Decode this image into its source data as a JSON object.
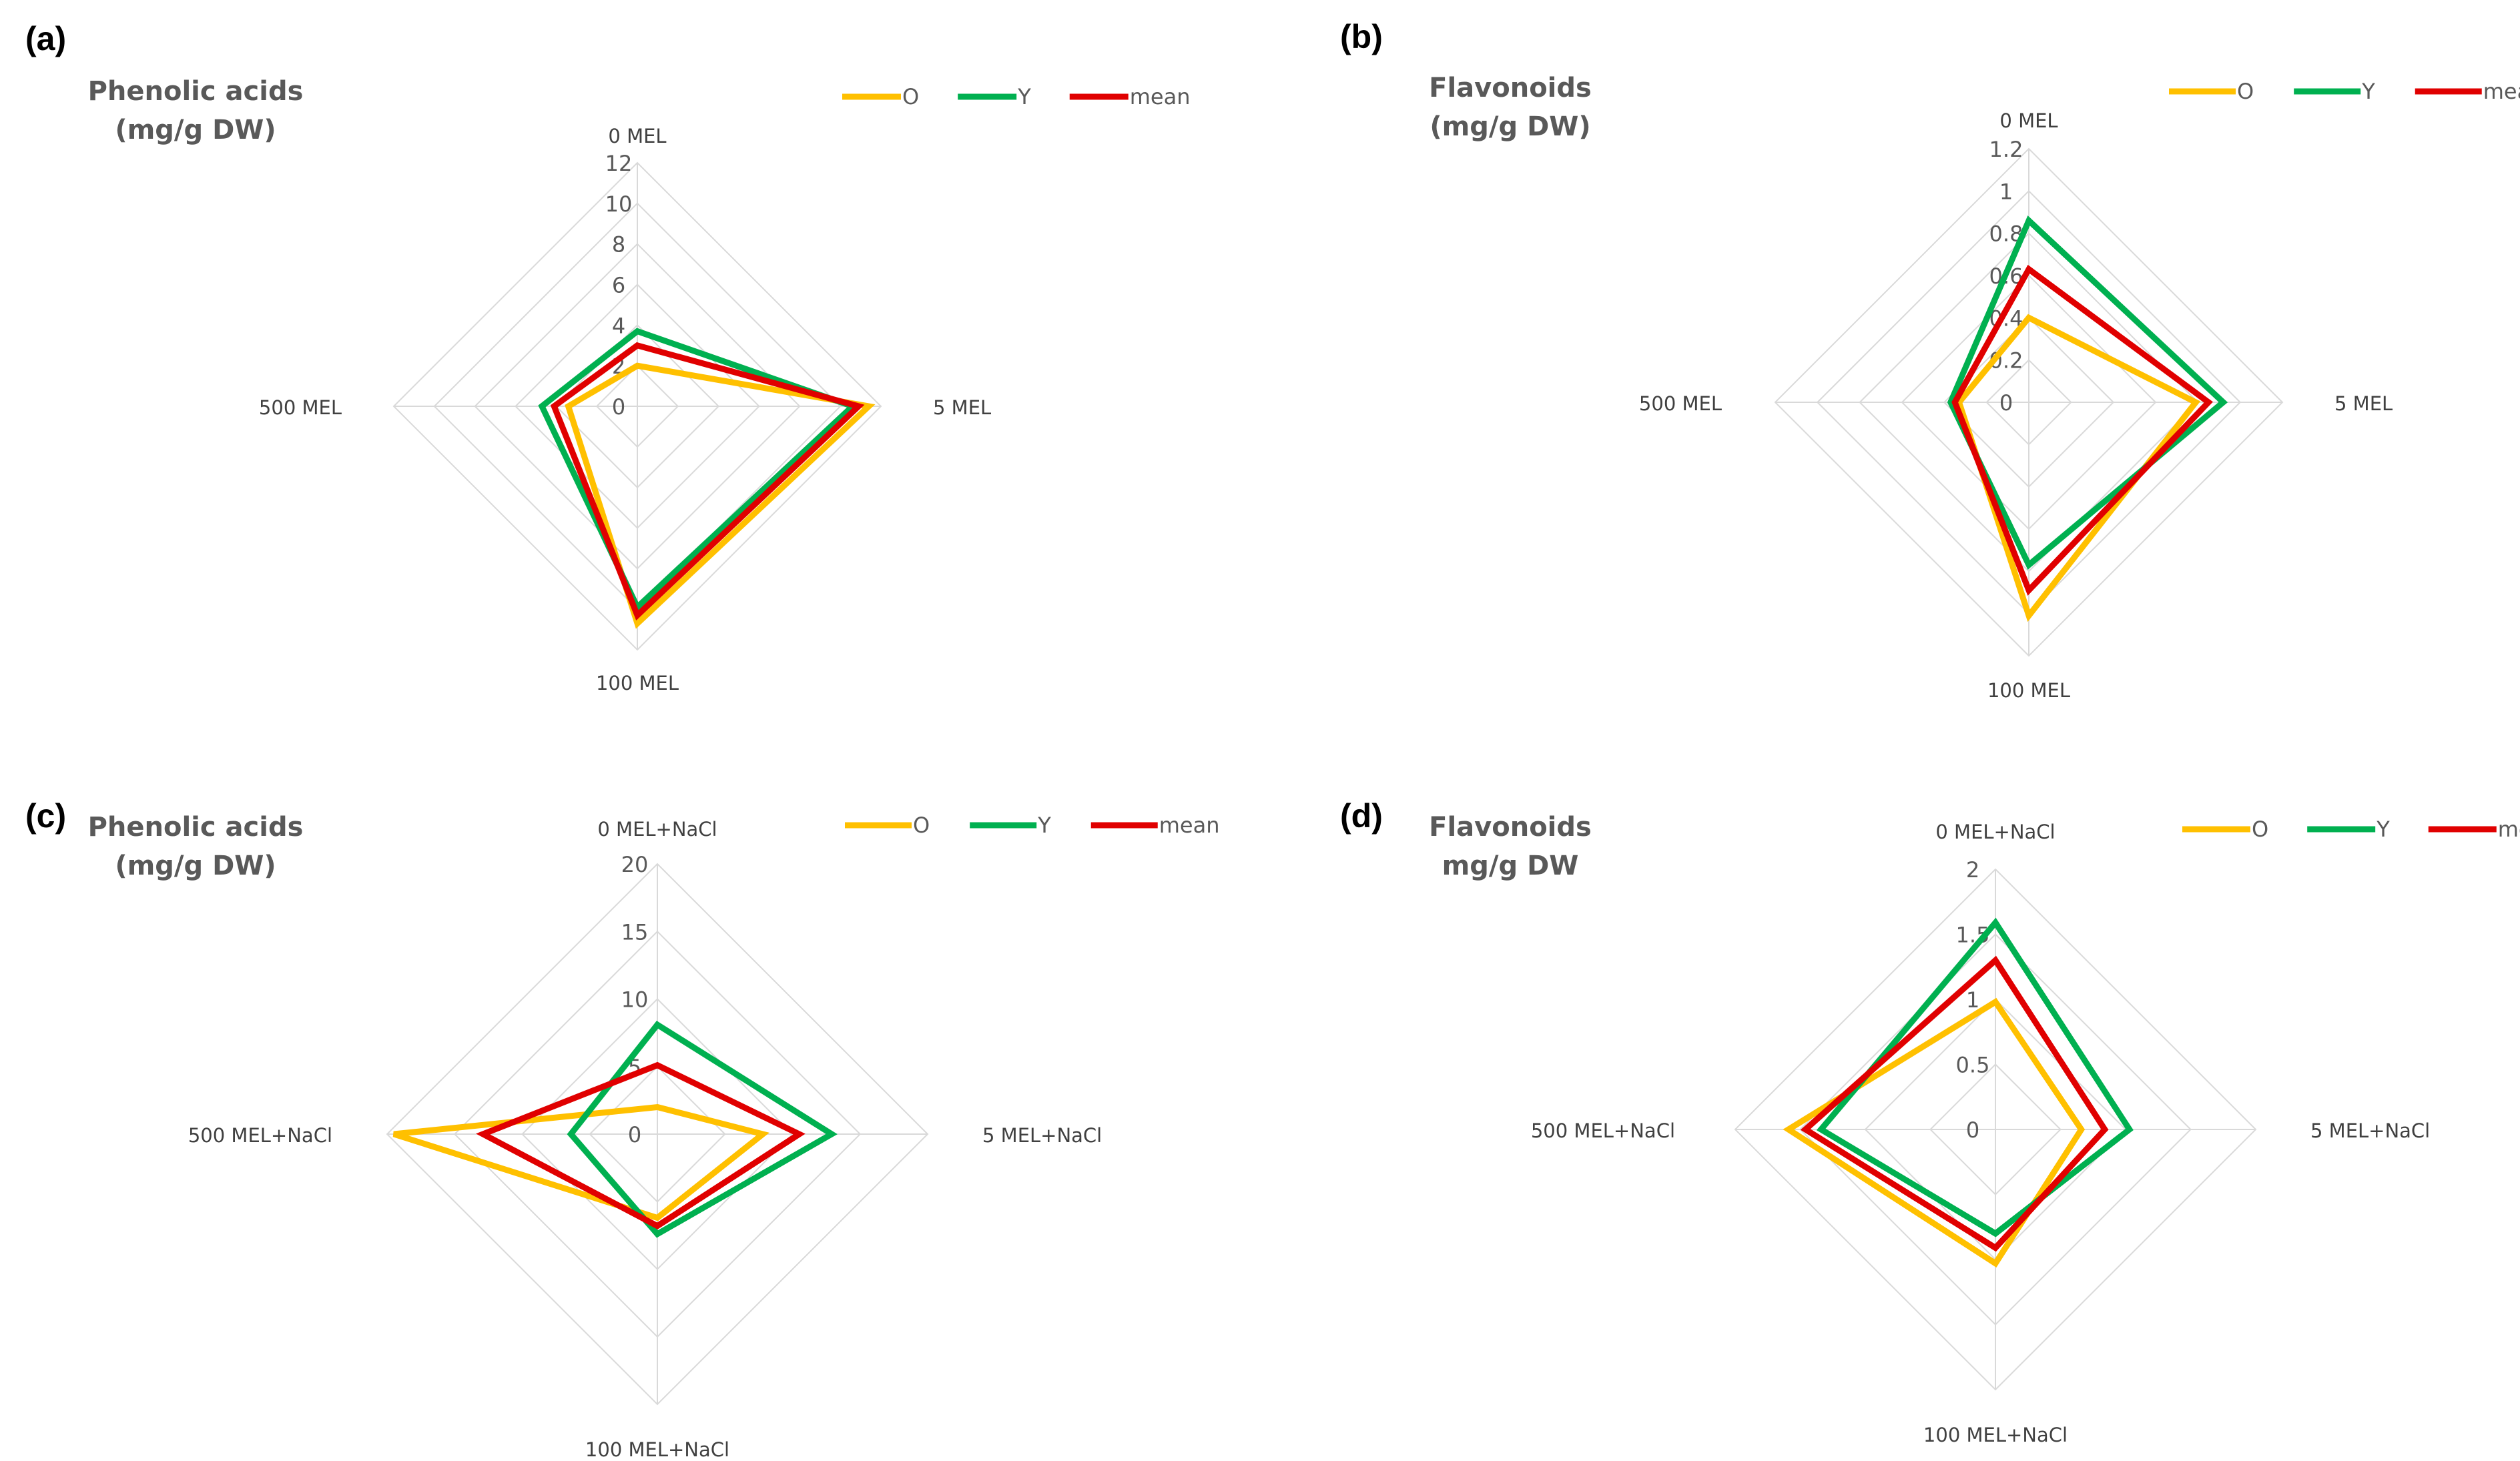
{
  "series_colors": {
    "O": "#FFC000",
    "Y": "#00B050",
    "mean": "#E00000"
  },
  "grid_color": "#D9D9D9",
  "chart_data": [
    {
      "type": "radar",
      "panel_label": "(a)",
      "title_lines": [
        "Phenolic acids",
        "(mg/g DW)"
      ],
      "categories": [
        "0 MEL",
        "5 MEL",
        "100 MEL",
        "500 MEL"
      ],
      "ticks": [
        "0",
        "2",
        "4",
        "6",
        "8",
        "10",
        "12"
      ],
      "range": [
        0,
        12
      ],
      "legend": [
        "O",
        "Y",
        "mean"
      ],
      "series": [
        {
          "name": "O",
          "values": [
            2.0,
            11.4,
            10.7,
            3.4
          ]
        },
        {
          "name": "Y",
          "values": [
            3.7,
            10.6,
            9.9,
            4.7
          ]
        },
        {
          "name": "mean",
          "values": [
            3.0,
            10.9,
            10.3,
            4.1
          ]
        }
      ]
    },
    {
      "type": "radar",
      "panel_label": "(b)",
      "title_lines": [
        "Flavonoids",
        "(mg/g DW)"
      ],
      "categories": [
        "0 MEL",
        "5 MEL",
        "100 MEL",
        "500 MEL"
      ],
      "ticks": [
        "0",
        "0.2",
        "0.4",
        "0.6",
        "0.8",
        "1",
        "1.2"
      ],
      "range": [
        0,
        1.2
      ],
      "legend": [
        "O",
        "Y",
        "mean"
      ],
      "series": [
        {
          "name": "O",
          "values": [
            0.4,
            0.79,
            1.01,
            0.33
          ]
        },
        {
          "name": "Y",
          "values": [
            0.86,
            0.92,
            0.77,
            0.37
          ]
        },
        {
          "name": "mean",
          "values": [
            0.63,
            0.85,
            0.89,
            0.35
          ]
        }
      ]
    },
    {
      "type": "radar",
      "panel_label": "(c)",
      "title_lines": [
        "Phenolic acids",
        "(mg/g DW)"
      ],
      "categories": [
        "0 MEL+NaCl",
        "5 MEL+NaCl",
        "100 MEL+NaCl",
        "500 MEL+NaCl"
      ],
      "ticks": [
        "0",
        "5",
        "10",
        "15",
        "20"
      ],
      "range": [
        0,
        20
      ],
      "legend": [
        "O",
        "Y",
        "mean"
      ],
      "series": [
        {
          "name": "O",
          "values": [
            2.0,
            7.8,
            6.2,
            19.5
          ]
        },
        {
          "name": "Y",
          "values": [
            8.1,
            12.9,
            7.4,
            6.4
          ]
        },
        {
          "name": "mean",
          "values": [
            5.1,
            10.5,
            6.8,
            12.9
          ]
        }
      ]
    },
    {
      "type": "radar",
      "panel_label": "(d)",
      "title_lines": [
        "Flavonoids",
        "mg/g DW"
      ],
      "categories": [
        "0 MEL+NaCl",
        "5 MEL+NaCl",
        "100 MEL+NaCl",
        "500 MEL+NaCl"
      ],
      "ticks": [
        "0",
        "0.5",
        "1",
        "1.5",
        "2"
      ],
      "range": [
        0,
        2
      ],
      "legend": [
        "O",
        "Y",
        "mean"
      ],
      "series": [
        {
          "name": "O",
          "values": [
            0.98,
            0.66,
            1.03,
            1.59
          ]
        },
        {
          "name": "Y",
          "values": [
            1.59,
            1.03,
            0.8,
            1.34
          ]
        },
        {
          "name": "mean",
          "values": [
            1.3,
            0.84,
            0.91,
            1.46
          ]
        }
      ]
    }
  ]
}
